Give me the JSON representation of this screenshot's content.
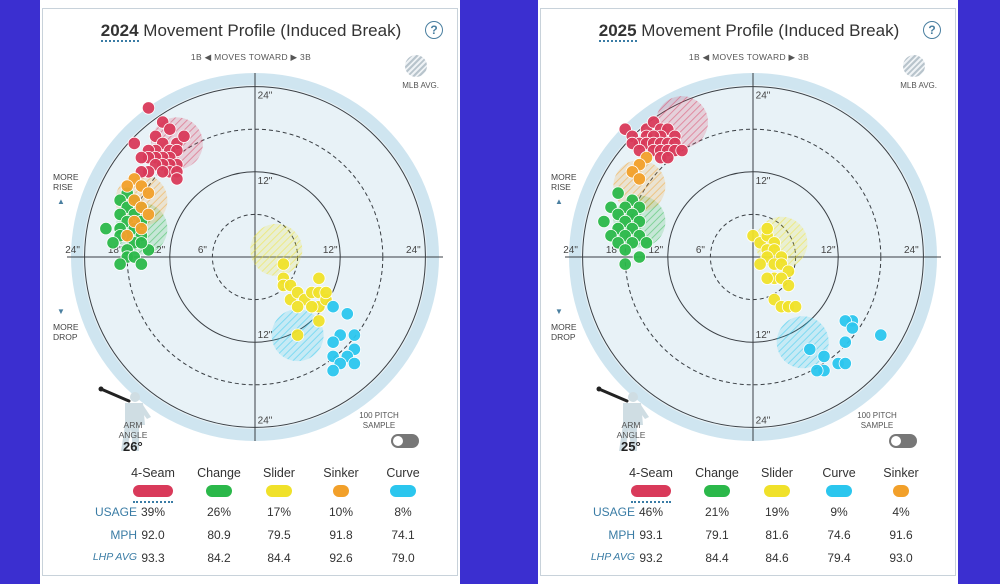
{
  "labels": {
    "title_suffix": "Movement Profile (Induced Break)",
    "moves_toward": "1B ◀  MOVES TOWARD  ▶ 3B",
    "mlb_avg": "MLB AVG.",
    "more_rise": "MORE\nRISE",
    "more_drop": "MORE\nDROP",
    "arm_angle": "ARM\nANGLE",
    "sample_label": "100 PITCH\nSAMPLE",
    "usage": "USAGE",
    "mph": "MPH",
    "lhp_avg": "LHP AVG",
    "help": "?"
  },
  "chart_data": [
    {
      "type": "scatter",
      "year": "2024",
      "title": "2024 Movement Profile (Induced Break)",
      "arm_angle": "26°",
      "axis_range_in": [
        -24,
        24
      ],
      "ring_labels": [
        "6\"",
        "12\"",
        "18\"",
        "24\""
      ],
      "tick_labels": {
        "top": [
          "24\"",
          "12\""
        ],
        "bottom": [
          "12\"",
          "24\""
        ],
        "left": [
          "24\"",
          "18\"",
          "12\"",
          "6\""
        ],
        "right": [
          "12\"",
          "24\""
        ]
      },
      "pitches": [
        {
          "name": "4-Seam",
          "color": "#d93a5a",
          "usage": "39%",
          "mph": "92.0",
          "lhp_avg": "93.3",
          "avg_center": [
            11,
            16
          ],
          "points": [
            [
              15,
              21
            ],
            [
              13,
              19
            ],
            [
              12,
              18
            ],
            [
              14,
              17
            ],
            [
              11,
              16
            ],
            [
              13,
              16
            ],
            [
              12,
              15
            ],
            [
              14,
              15
            ],
            [
              15,
              15
            ],
            [
              11,
              15
            ],
            [
              12,
              14
            ],
            [
              13,
              14
            ],
            [
              14,
              14
            ],
            [
              15,
              14
            ],
            [
              16,
              14
            ],
            [
              11,
              13
            ],
            [
              12,
              13
            ],
            [
              13,
              13
            ],
            [
              14,
              13
            ],
            [
              12,
              12
            ],
            [
              13,
              12
            ],
            [
              11,
              12
            ],
            [
              15,
              12
            ],
            [
              16,
              12
            ],
            [
              10,
              17
            ],
            [
              17,
              16
            ],
            [
              11,
              11
            ]
          ]
        },
        {
          "name": "Change",
          "color": "#2bb84a",
          "usage": "26%",
          "mph": "80.9",
          "lhp_avg": "84.2",
          "avg_center": [
            16,
            4
          ],
          "points": [
            [
              18,
              9
            ],
            [
              17,
              8
            ],
            [
              19,
              8
            ],
            [
              16,
              7
            ],
            [
              18,
              7
            ],
            [
              17,
              6
            ],
            [
              19,
              6
            ],
            [
              18,
              5
            ],
            [
              16,
              5
            ],
            [
              19,
              4
            ],
            [
              17,
              4
            ],
            [
              18,
              3
            ],
            [
              16,
              3
            ],
            [
              19,
              3
            ],
            [
              20,
              2
            ],
            [
              17,
              2
            ],
            [
              18,
              1
            ],
            [
              15,
              1
            ],
            [
              16,
              2
            ],
            [
              18,
              0
            ],
            [
              17,
              0
            ],
            [
              19,
              -1
            ],
            [
              16,
              -1
            ],
            [
              21,
              4
            ]
          ]
        },
        {
          "name": "Slider",
          "color": "#f0e12a",
          "usage": "17%",
          "mph": "79.5",
          "lhp_avg": "84.4",
          "avg_center": [
            -3,
            1
          ],
          "points": [
            [
              -4,
              -1
            ],
            [
              -4,
              -3
            ],
            [
              -4,
              -4
            ],
            [
              -5,
              -4
            ],
            [
              -5,
              -6
            ],
            [
              -6,
              -5
            ],
            [
              -7,
              -6
            ],
            [
              -6,
              -7
            ],
            [
              -8,
              -5
            ],
            [
              -9,
              -3
            ],
            [
              -9,
              -5
            ],
            [
              -9,
              -7
            ],
            [
              -9,
              -9
            ],
            [
              -8,
              -7
            ],
            [
              -10,
              -6
            ],
            [
              -10,
              -5
            ],
            [
              -6,
              -11
            ]
          ]
        },
        {
          "name": "Sinker",
          "color": "#f2a02a",
          "usage": "10%",
          "mph": "91.8",
          "lhp_avg": "92.6",
          "avg_center": [
            16,
            8
          ],
          "points": [
            [
              17,
              11
            ],
            [
              16,
              10
            ],
            [
              18,
              10
            ],
            [
              15,
              9
            ],
            [
              17,
              8
            ],
            [
              16,
              7
            ],
            [
              15,
              6
            ],
            [
              17,
              5
            ],
            [
              16,
              4
            ],
            [
              18,
              3
            ]
          ]
        },
        {
          "name": "Curve",
          "color": "#2bc6ee",
          "usage": "8%",
          "mph": "74.1",
          "lhp_avg": "79.0",
          "avg_center": [
            -6,
            -11
          ],
          "points": [
            [
              -11,
              -7
            ],
            [
              -13,
              -8
            ],
            [
              -12,
              -11
            ],
            [
              -14,
              -11
            ],
            [
              -11,
              -12
            ],
            [
              -14,
              -13
            ],
            [
              -13,
              -14
            ],
            [
              -11,
              -14
            ],
            [
              -12,
              -15
            ],
            [
              -11,
              -16
            ],
            [
              -14,
              -15
            ]
          ]
        }
      ]
    },
    {
      "type": "scatter",
      "year": "2025",
      "title": "2025 Movement Profile (Induced Break)",
      "arm_angle": "25°",
      "axis_range_in": [
        -24,
        24
      ],
      "ring_labels": [
        "6\"",
        "12\"",
        "18\"",
        "24\""
      ],
      "tick_labels": {
        "top": [
          "24\"",
          "12\""
        ],
        "bottom": [
          "12\"",
          "24\""
        ],
        "left": [
          "24\"",
          "18\"",
          "12\"",
          "6\""
        ],
        "right": [
          "12\"",
          "24\""
        ]
      },
      "pitches": [
        {
          "name": "4-Seam",
          "color": "#d93a5a",
          "usage": "46%",
          "mph": "93.1",
          "lhp_avg": "93.2",
          "avg_center": [
            10,
            19
          ],
          "points": [
            [
              18,
              18
            ],
            [
              17,
              17
            ],
            [
              15,
              18
            ],
            [
              14,
              19
            ],
            [
              13,
              18
            ],
            [
              12,
              18
            ],
            [
              13,
              17
            ],
            [
              15,
              17
            ],
            [
              14,
              17
            ],
            [
              11,
              17
            ],
            [
              16,
              16
            ],
            [
              15,
              16
            ],
            [
              14,
              16
            ],
            [
              13,
              16
            ],
            [
              12,
              16
            ],
            [
              11,
              16
            ],
            [
              17,
              16
            ],
            [
              16,
              15
            ],
            [
              14,
              15
            ],
            [
              13,
              15
            ],
            [
              12,
              15
            ],
            [
              11,
              15
            ],
            [
              10,
              15
            ],
            [
              13,
              14
            ],
            [
              12,
              14
            ]
          ]
        },
        {
          "name": "Change",
          "color": "#2bb84a",
          "usage": "21%",
          "mph": "79.1",
          "lhp_avg": "84.4",
          "avg_center": [
            16,
            5
          ],
          "points": [
            [
              19,
              9
            ],
            [
              17,
              8
            ],
            [
              18,
              7
            ],
            [
              20,
              7
            ],
            [
              16,
              7
            ],
            [
              17,
              6
            ],
            [
              19,
              6
            ],
            [
              18,
              5
            ],
            [
              16,
              5
            ],
            [
              19,
              4
            ],
            [
              17,
              4
            ],
            [
              18,
              3
            ],
            [
              16,
              3
            ],
            [
              20,
              3
            ],
            [
              19,
              2
            ],
            [
              17,
              2
            ],
            [
              18,
              1
            ],
            [
              21,
              5
            ],
            [
              15,
              2
            ],
            [
              18,
              -1
            ],
            [
              16,
              0
            ]
          ]
        },
        {
          "name": "Slider",
          "color": "#f0e12a",
          "usage": "19%",
          "mph": "81.6",
          "lhp_avg": "84.6",
          "avg_center": [
            -4,
            2
          ],
          "points": [
            [
              0,
              3
            ],
            [
              -1,
              2
            ],
            [
              -2,
              3
            ],
            [
              -2,
              4
            ],
            [
              -3,
              2
            ],
            [
              -2,
              1
            ],
            [
              -3,
              1
            ],
            [
              -4,
              0
            ],
            [
              -2,
              0
            ],
            [
              -1,
              -1
            ],
            [
              -3,
              -1
            ],
            [
              -4,
              -1
            ],
            [
              -5,
              -2
            ],
            [
              -3,
              -3
            ],
            [
              -2,
              -3
            ],
            [
              -4,
              -3
            ],
            [
              -5,
              -4
            ],
            [
              -3,
              -6
            ],
            [
              -4,
              -7
            ],
            [
              -5,
              -7
            ],
            [
              -6,
              -7
            ]
          ]
        },
        {
          "name": "Curve",
          "color": "#2bc6ee",
          "usage": "9%",
          "mph": "74.6",
          "lhp_avg": "79.4",
          "avg_center": [
            -7,
            -12
          ],
          "points": [
            [
              -14,
              -9
            ],
            [
              -13,
              -9
            ],
            [
              -14,
              -10
            ],
            [
              -13,
              -12
            ],
            [
              -10,
              -14
            ],
            [
              -8,
              -13
            ],
            [
              -12,
              -15
            ],
            [
              -13,
              -15
            ],
            [
              -10,
              -16
            ],
            [
              -9,
              -16
            ],
            [
              -18,
              -11
            ]
          ]
        },
        {
          "name": "Sinker",
          "color": "#f2a02a",
          "usage": "4%",
          "mph": "91.6",
          "lhp_avg": "93.0",
          "avg_center": [
            16,
            10
          ],
          "points": [
            [
              15,
              14
            ],
            [
              16,
              13
            ],
            [
              17,
              12
            ],
            [
              16,
              11
            ]
          ]
        }
      ]
    }
  ]
}
